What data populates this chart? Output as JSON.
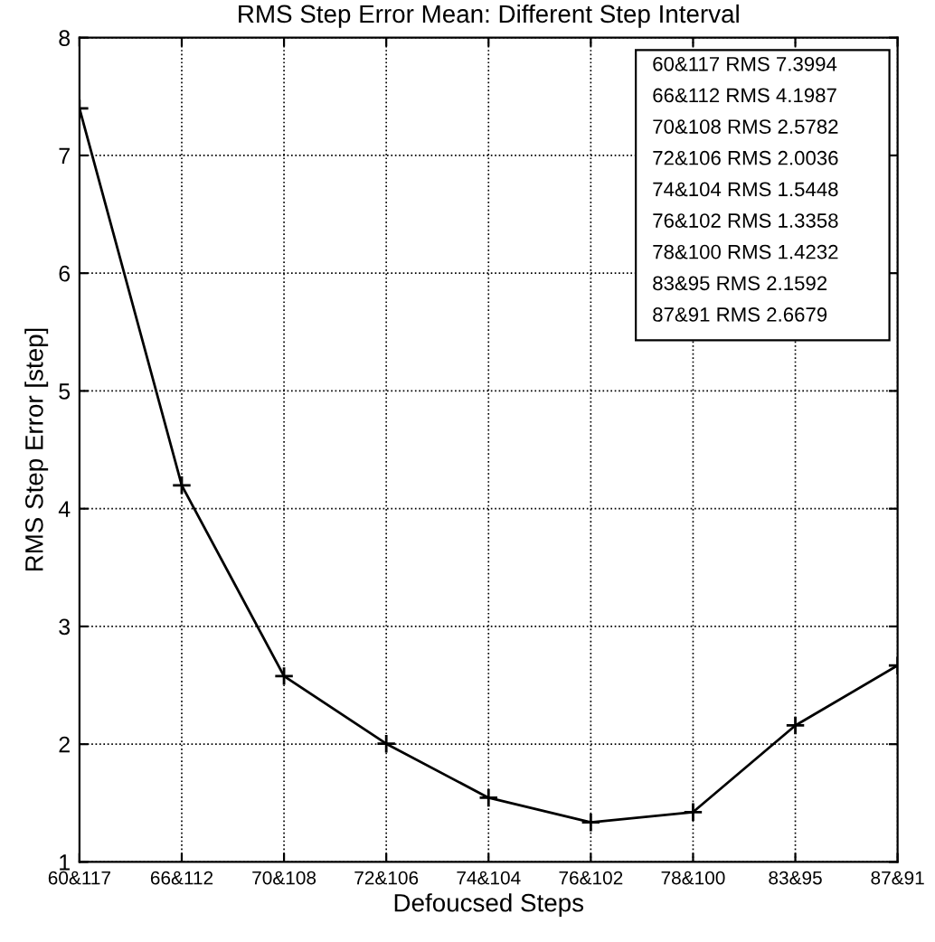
{
  "chart_data": {
    "type": "line",
    "title": "RMS Step Error Mean: Different Step Interval",
    "xlabel": "Defoucsed Steps",
    "ylabel": "RMS Step Error [step]",
    "categories": [
      "60&117",
      "66&112",
      "70&108",
      "72&106",
      "74&104",
      "76&102",
      "78&100",
      "83&95",
      "87&91"
    ],
    "series": [
      {
        "color": "#000000",
        "values": [
          7.3994,
          4.1987,
          2.5782,
          2.0036,
          1.5448,
          1.3358,
          1.4232,
          2.1592,
          2.6679
        ]
      }
    ],
    "ylim": [
      1,
      8
    ],
    "yticks": [
      1,
      2,
      3,
      4,
      5,
      6,
      7,
      8
    ],
    "grid": true,
    "marker": "cross",
    "line_style": "solid",
    "annotations": [
      "60&117 RMS 7.3994",
      "66&112 RMS 4.1987",
      "70&108 RMS 2.5782",
      "72&106 RMS 2.0036",
      "74&104 RMS 1.5448",
      "76&102 RMS 1.3358",
      "78&100 RMS 1.4232",
      "83&95 RMS 2.1592",
      "87&91 RMS 2.6679"
    ]
  }
}
